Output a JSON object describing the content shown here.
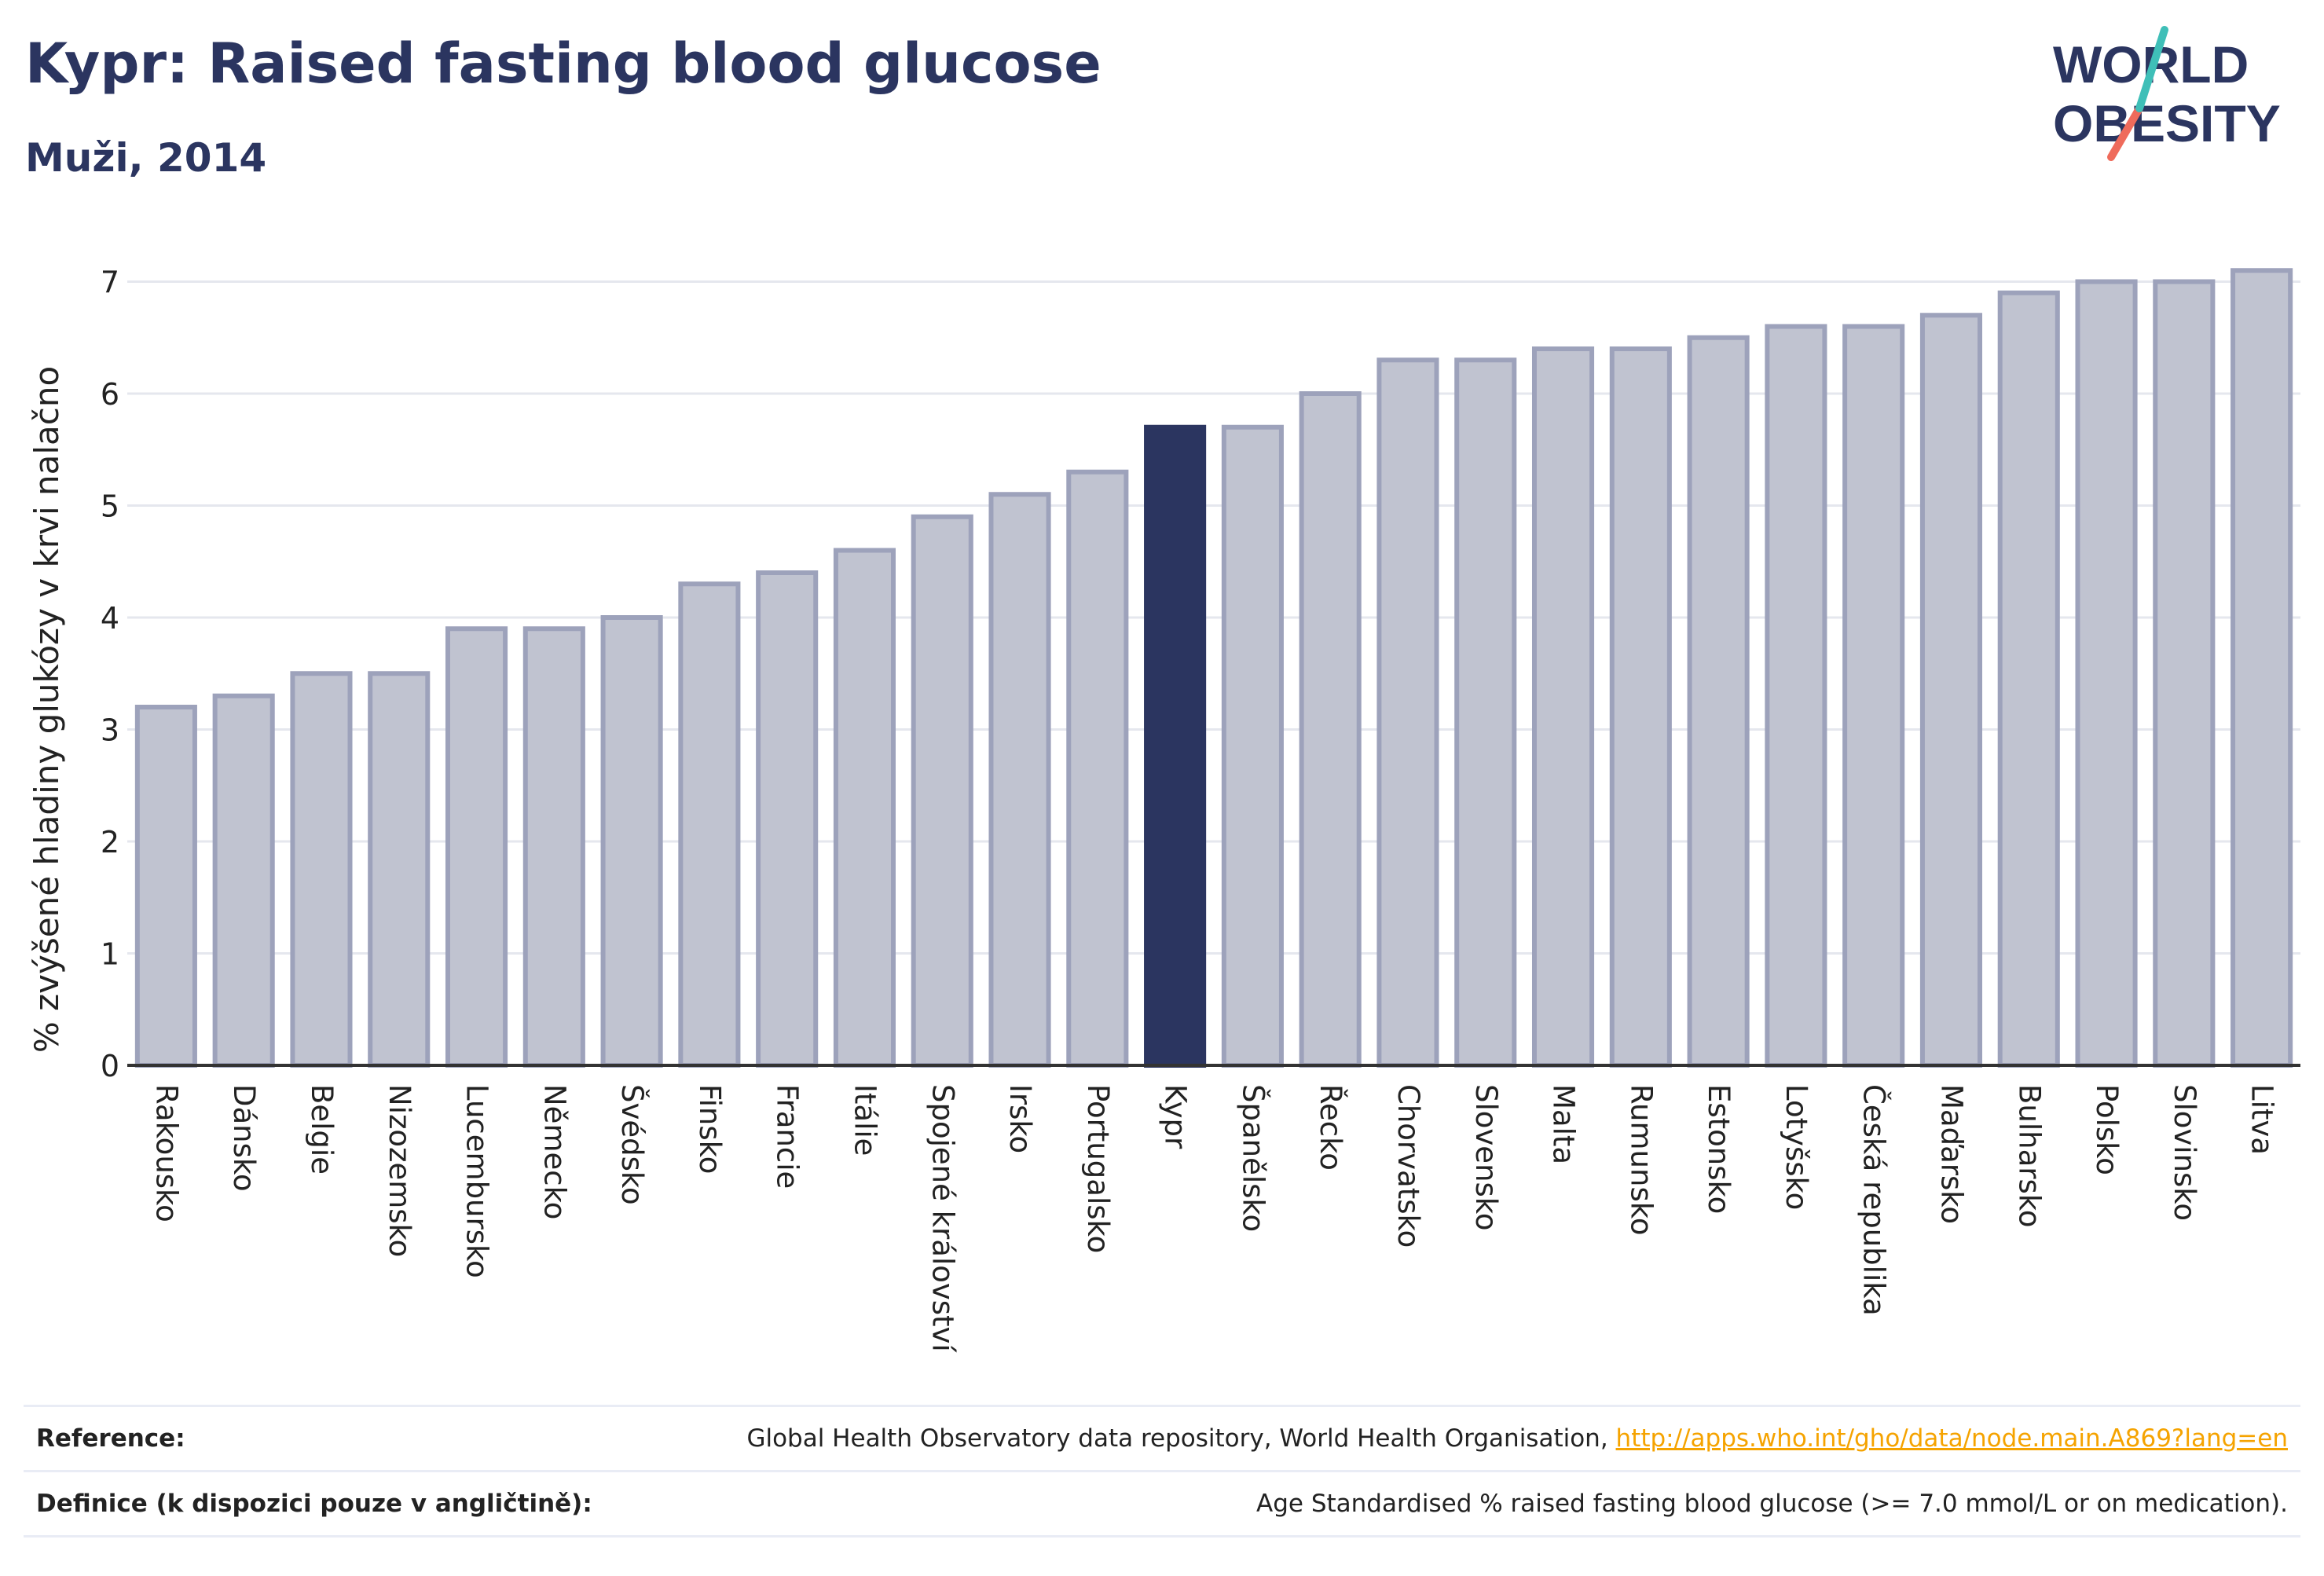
{
  "header": {
    "title": "Kypr: Raised fasting blood glucose",
    "subtitle": "Muži, 2014"
  },
  "logo": {
    "line1": "WORLD",
    "line2": "OBESITY"
  },
  "colors": {
    "highlight": "#2b3560",
    "bar_fill": "#c0c3d0",
    "bar_stroke": "#9da2bb",
    "grid": "#e5e7ee",
    "accent_teal": "#3fbfb8",
    "accent_coral": "#ef6b5b"
  },
  "chart_data": {
    "type": "bar",
    "ylabel": "% zvýšené hladiny glukózy v krvi nalačno",
    "ylim": [
      0,
      7.2
    ],
    "yticks": [
      0,
      1,
      2,
      3,
      4,
      5,
      6,
      7
    ],
    "highlight": "Kypr",
    "categories": [
      "Rakousko",
      "Dánsko",
      "Belgie",
      "Nizozemsko",
      "Lucembursko",
      "Německo",
      "Švédsko",
      "Finsko",
      "Francie",
      "Itálie",
      "Spojené království",
      "Irsko",
      "Portugalsko",
      "Kypr",
      "Španělsko",
      "Řecko",
      "Chorvatsko",
      "Slovensko",
      "Malta",
      "Rumunsko",
      "Estonsko",
      "Lotyšsko",
      "Česká republika",
      "Maďarsko",
      "Bulharsko",
      "Polsko",
      "Slovinsko",
      "Litva"
    ],
    "values": [
      3.2,
      3.3,
      3.5,
      3.5,
      3.9,
      3.9,
      4.0,
      4.3,
      4.4,
      4.6,
      4.9,
      5.1,
      5.3,
      5.7,
      5.7,
      6.0,
      6.3,
      6.3,
      6.4,
      6.4,
      6.5,
      6.6,
      6.6,
      6.7,
      6.9,
      7.0,
      7.0,
      7.1
    ]
  },
  "reference": {
    "label": "Reference:",
    "text": "Global Health Observatory data repository, World Health Organisation, ",
    "link": "http://apps.who.int/gho/data/node.main.A869?lang=en"
  },
  "definition": {
    "label": "Definice (k dispozici pouze v angličtině):",
    "text": "Age Standardised % raised fasting blood glucose (>= 7.0 mmol/L or on medication)."
  }
}
